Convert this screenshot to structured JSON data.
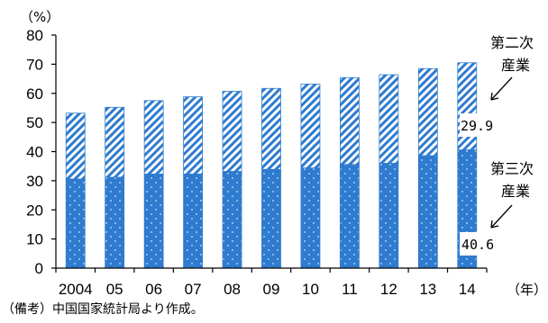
{
  "chart_data": {
    "type": "bar",
    "stacked": true,
    "categories": [
      "2004",
      "05",
      "06",
      "07",
      "08",
      "09",
      "10",
      "11",
      "12",
      "13",
      "14"
    ],
    "series": [
      {
        "name": "第三次産業",
        "values": [
          30.6,
          31.2,
          32.3,
          32.3,
          33.2,
          33.9,
          34.4,
          35.6,
          36.0,
          38.6,
          40.6
        ],
        "pattern": "dotted",
        "color": "#2e7bcf"
      },
      {
        "name": "第二次産業",
        "values": [
          22.6,
          24.0,
          25.2,
          26.5,
          27.5,
          27.8,
          28.8,
          29.8,
          30.4,
          29.9,
          29.9
        ],
        "pattern": "hatched",
        "color": "#2e7bcf"
      }
    ],
    "ylim": [
      0,
      80
    ],
    "yticks": [
      0,
      10,
      20,
      30,
      40,
      50,
      60,
      70,
      80
    ],
    "y_unit": "（%）",
    "x_unit": "（年）",
    "annotations": {
      "secondary_label_line1": "第二次",
      "secondary_label_line2": "産業",
      "secondary_value": "29.9",
      "tertiary_label_line1": "第三次",
      "tertiary_label_line2": "産業",
      "tertiary_value": "40.6"
    },
    "legend": "none",
    "grid": false
  },
  "note": "（備考）中国国家統計局より作成。"
}
